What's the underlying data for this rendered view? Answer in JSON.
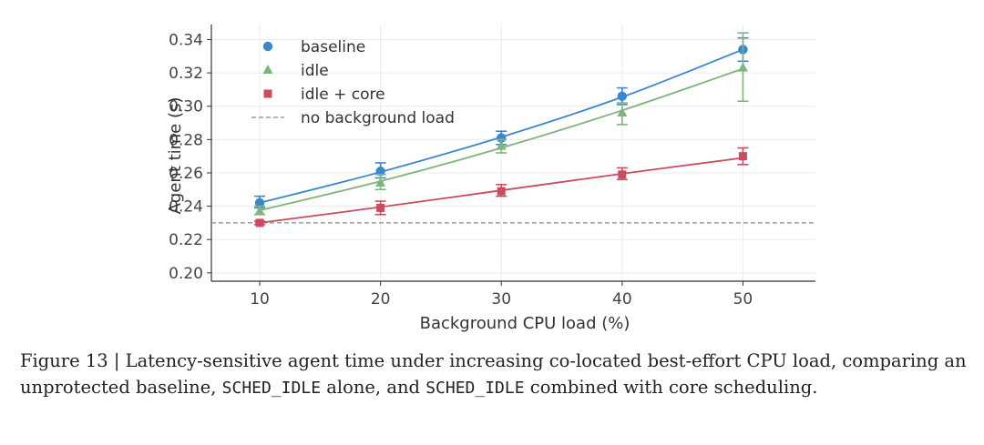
{
  "chart_data": {
    "type": "line",
    "xlabel": "Background CPU load (%)",
    "ylabel": "Agent time (s)",
    "xlim": [
      6,
      56
    ],
    "ylim": [
      0.195,
      0.349
    ],
    "x_ticks": [
      10,
      20,
      30,
      40,
      50
    ],
    "y_ticks": [
      0.2,
      0.22,
      0.24,
      0.26,
      0.28,
      0.3,
      0.32,
      0.34
    ],
    "grid": true,
    "legend_position": "top-left",
    "series": [
      {
        "name": "baseline",
        "marker": "circle",
        "color": "#3a87d0",
        "x": [
          10,
          20,
          30,
          40,
          50
        ],
        "y": [
          0.242,
          0.261,
          0.281,
          0.306,
          0.334
        ],
        "err_low": [
          0.239,
          0.257,
          0.277,
          0.301,
          0.327
        ],
        "err_high": [
          0.246,
          0.266,
          0.285,
          0.311,
          0.341
        ],
        "fit": [
          0.242,
          0.2605,
          0.2815,
          0.3055,
          0.334
        ]
      },
      {
        "name": "idle",
        "marker": "triangle",
        "color": "#7fb57a",
        "x": [
          10,
          20,
          30,
          40,
          50
        ],
        "y": [
          0.237,
          0.254,
          0.276,
          0.296,
          0.323
        ],
        "err_low": [
          0.235,
          0.25,
          0.272,
          0.289,
          0.303
        ],
        "err_high": [
          0.24,
          0.259,
          0.28,
          0.302,
          0.344
        ],
        "fit": [
          0.2375,
          0.255,
          0.275,
          0.2975,
          0.3225
        ]
      },
      {
        "name": "idle + core",
        "marker": "square",
        "color": "#cc4b5f",
        "x": [
          10,
          20,
          30,
          40,
          50
        ],
        "y": [
          0.23,
          0.239,
          0.249,
          0.259,
          0.27
        ],
        "err_low": [
          0.229,
          0.235,
          0.246,
          0.256,
          0.265
        ],
        "err_high": [
          0.231,
          0.243,
          0.253,
          0.263,
          0.275
        ],
        "fit": [
          0.23,
          0.2395,
          0.2495,
          0.2595,
          0.269
        ]
      }
    ],
    "reference_line": {
      "name": "no background load",
      "y": 0.23,
      "color": "#888888",
      "style": "dashed"
    }
  },
  "caption": {
    "part1": "Figure 13 | Latency-sensitive agent time under increasing co-located best-effort CPU load, comparing an unprotected baseline, ",
    "code1": "SCHED_IDLE",
    "part2": " alone, and ",
    "code2": "SCHED_IDLE",
    "part3": " combined with core scheduling."
  }
}
